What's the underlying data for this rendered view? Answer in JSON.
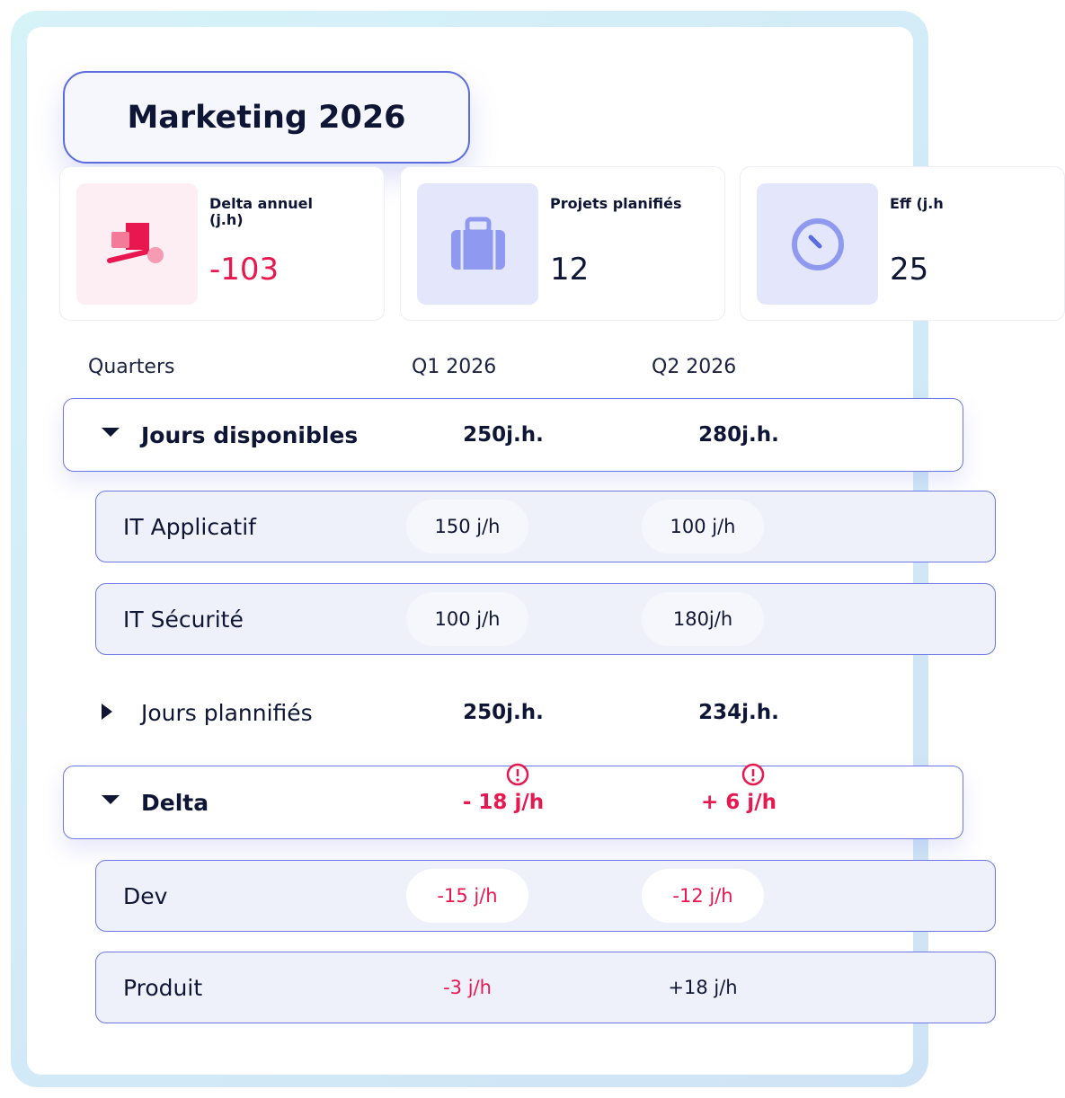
{
  "title": "Marketing 2026",
  "cards": [
    {
      "label": "Delta annuel (j.h)",
      "value": "-103"
    },
    {
      "label": "Projets planifiés",
      "value": "12"
    },
    {
      "label": "Eff (j.h",
      "value": "25"
    }
  ],
  "table": {
    "header": [
      "Quarters",
      "Q1 2026",
      "Q2 2026"
    ],
    "groups": [
      {
        "label": "Jours disponibles",
        "values": [
          "250j.h.",
          "280j.h."
        ],
        "rows": [
          {
            "label": "IT Applicatif",
            "values": [
              "150 j/h",
              "100 j/h"
            ]
          },
          {
            "label": "IT Sécurité",
            "values": [
              "100 j/h",
              "180j/h"
            ]
          }
        ]
      },
      {
        "label": "Jours plannifiés",
        "values": [
          "250j.h.",
          "234j.h."
        ],
        "rows": []
      },
      {
        "label": "Delta",
        "values": [
          "- 18 j/h",
          "+ 6 j/h"
        ],
        "rows": [
          {
            "label": "Dev",
            "values": [
              "-15 j/h",
              "-12 j/h"
            ]
          },
          {
            "label": "Produit",
            "values": [
              "-3 j/h",
              "+18 j/h"
            ]
          }
        ]
      }
    ]
  }
}
